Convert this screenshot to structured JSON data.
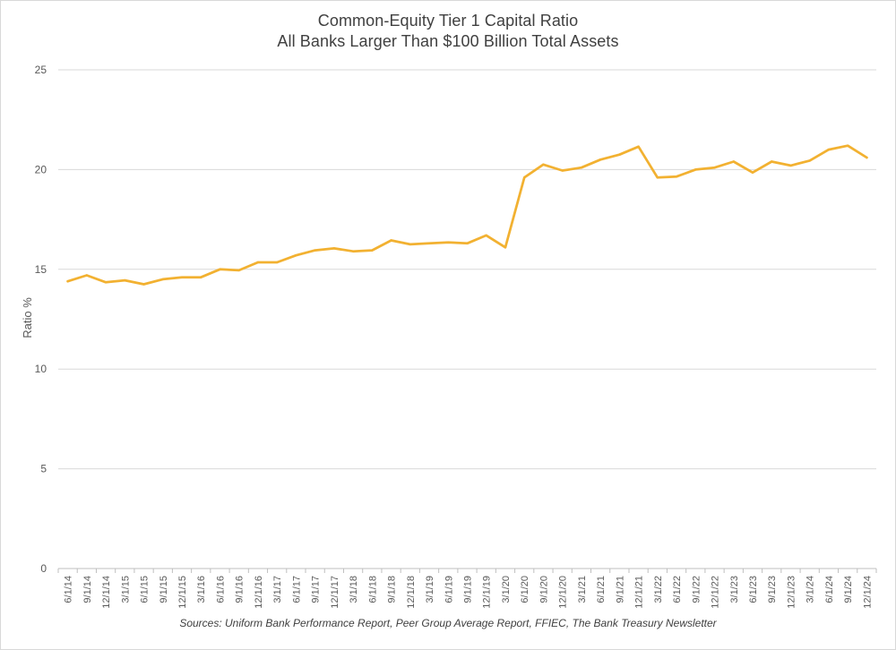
{
  "chart_data": {
    "type": "line",
    "title": "Common-Equity Tier 1 Capital Ratio",
    "subtitle": "All Banks Larger Than $100 Billion Total Assets",
    "xlabel": "",
    "ylabel": "Ratio %",
    "ylim": [
      0,
      25
    ],
    "yticks": [
      "0",
      "5",
      "10",
      "15",
      "20",
      "25"
    ],
    "grid": true,
    "legend": "none",
    "source": "Sources: Uniform Bank Performance Report, Peer Group Average Report, FFIEC, The Bank Treasury Newsletter",
    "colors": {
      "line": "#F2B131",
      "grid": "#d9d9d9",
      "axis": "#bfbfbf"
    },
    "categories": [
      "6/1/14",
      "9/1/14",
      "12/1/14",
      "3/1/15",
      "6/1/15",
      "9/1/15",
      "12/1/15",
      "3/1/16",
      "6/1/16",
      "9/1/16",
      "12/1/16",
      "3/1/17",
      "6/1/17",
      "9/1/17",
      "12/1/17",
      "3/1/18",
      "6/1/18",
      "9/1/18",
      "12/1/18",
      "3/1/19",
      "6/1/19",
      "9/1/19",
      "12/1/19",
      "3/1/20",
      "6/1/20",
      "9/1/20",
      "12/1/20",
      "3/1/21",
      "6/1/21",
      "9/1/21",
      "12/1/21",
      "3/1/22",
      "6/1/22",
      "9/1/22",
      "12/1/22",
      "3/1/23",
      "6/1/23",
      "9/1/23",
      "12/1/23",
      "3/1/24",
      "6/1/24",
      "9/1/24",
      "12/1/24"
    ],
    "series": [
      {
        "values": [
          14.4,
          14.7,
          14.35,
          14.45,
          14.25,
          14.5,
          14.6,
          14.6,
          15.0,
          14.95,
          15.35,
          15.35,
          15.7,
          15.95,
          16.05,
          15.9,
          15.95,
          16.45,
          16.25,
          16.3,
          16.35,
          16.3,
          16.7,
          16.1,
          19.6,
          20.25,
          19.95,
          20.1,
          20.5,
          20.75,
          21.15,
          19.6,
          19.65,
          20.0,
          20.1,
          20.4,
          19.85,
          20.4,
          20.2,
          20.45,
          21.0,
          21.2,
          20.6
        ]
      }
    ]
  }
}
